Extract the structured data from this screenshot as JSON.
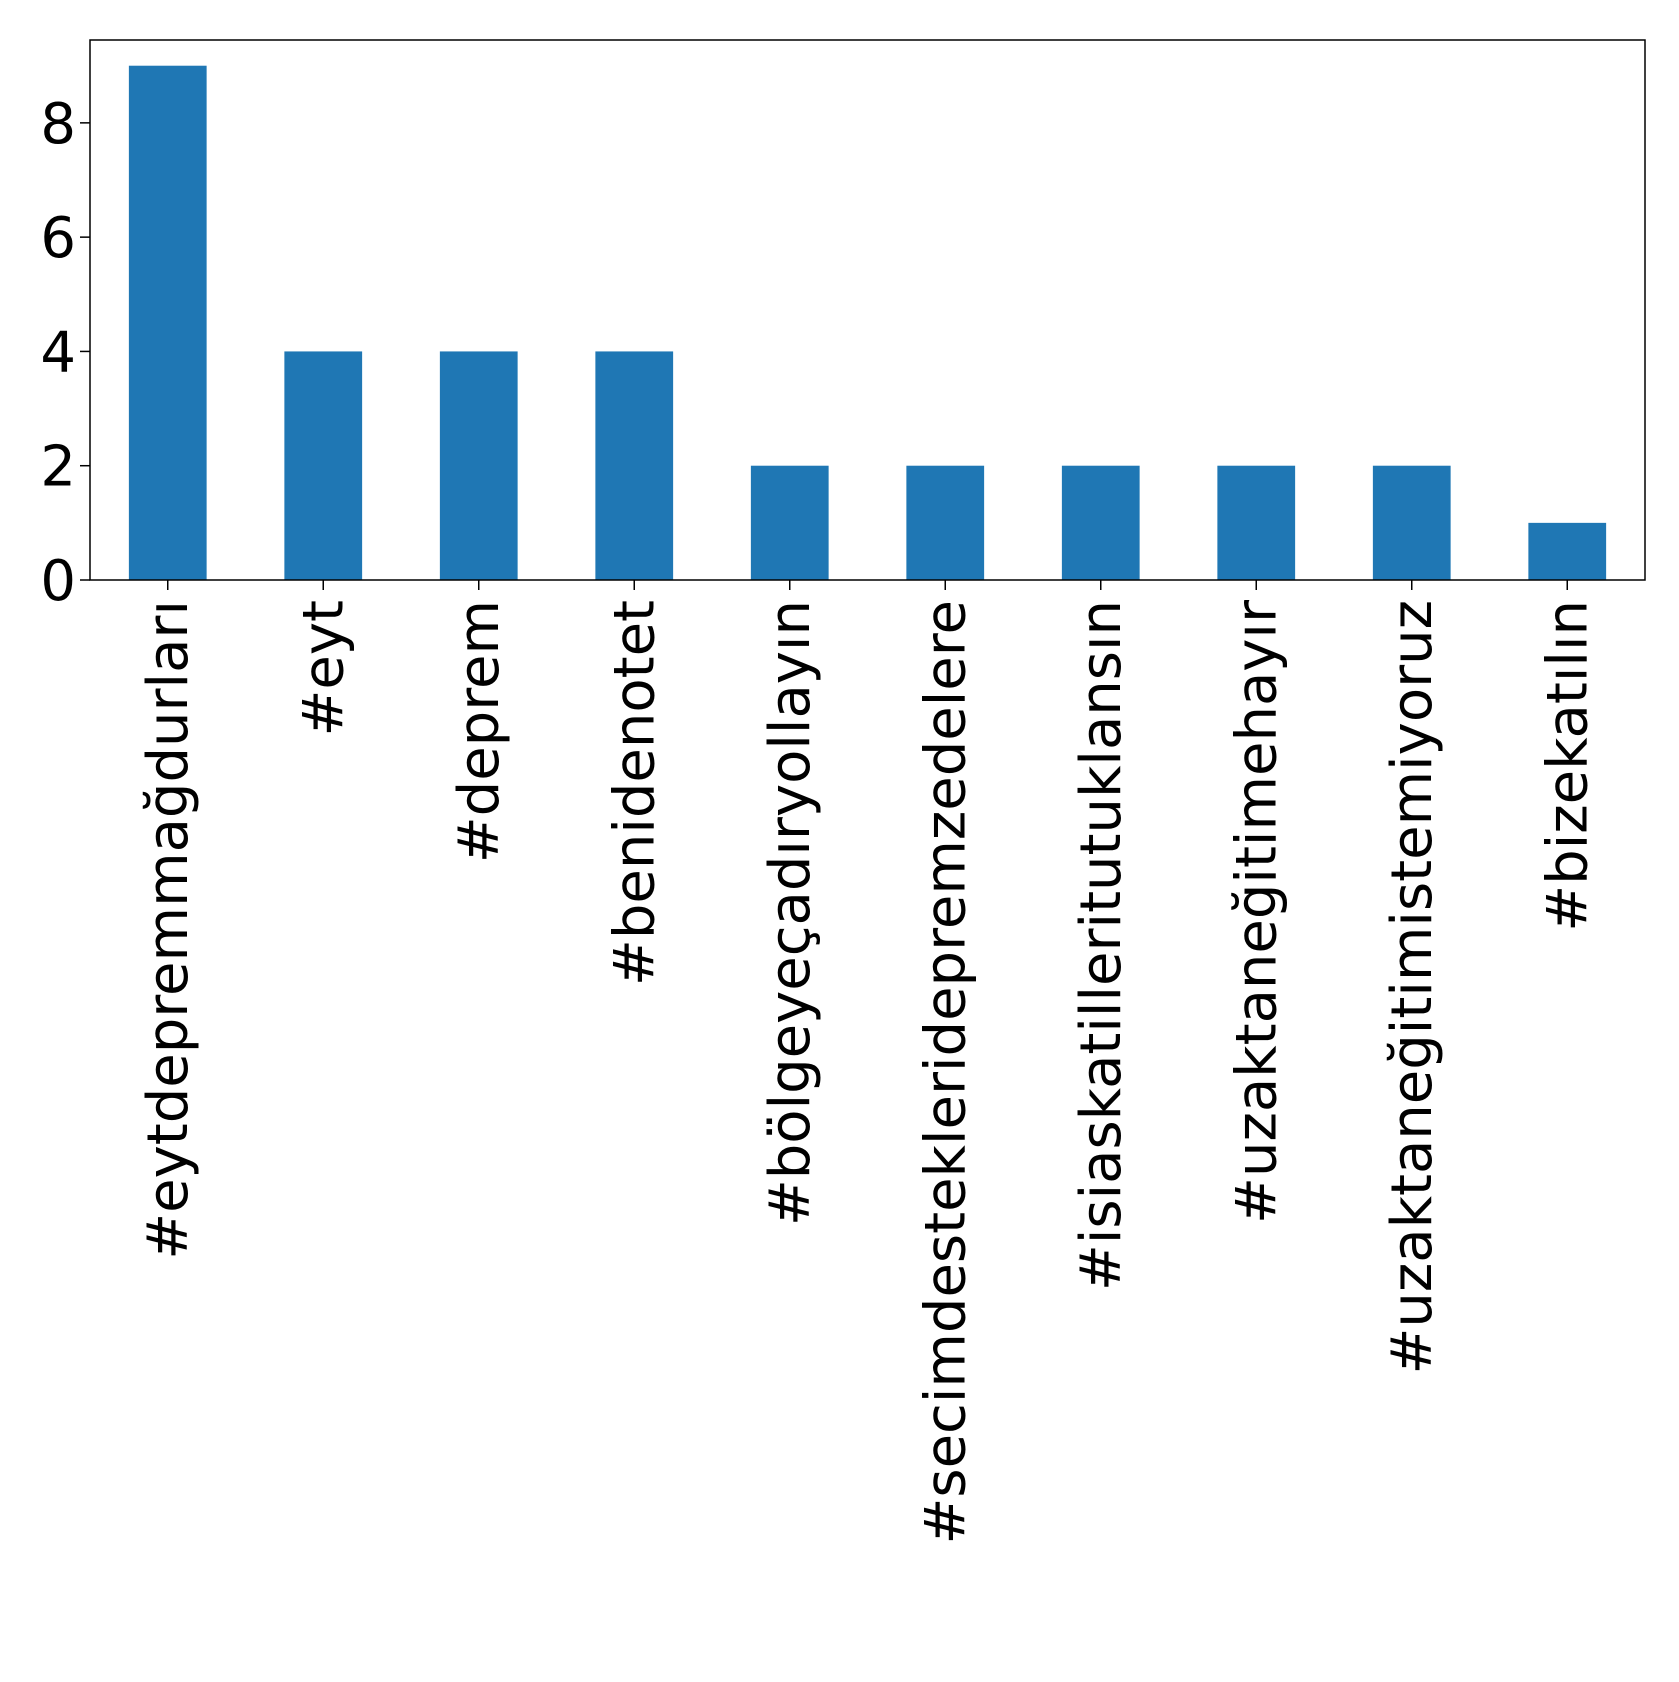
{
  "chart_data": {
    "type": "bar",
    "categories": [
      "#eytdepremmağdurları",
      "#eyt",
      "#deprem",
      "#benidenotet",
      "#bölgeyeçadıryollayın",
      "#secimdesteklerideprem​zedelere",
      "#isiaskatilleritutuklansın",
      "#uzaktaneğitimehayır",
      "#uzaktaneğitimistemiyoruz",
      "#bizekatılın"
    ],
    "values": [
      9,
      4,
      4,
      4,
      2,
      2,
      2,
      2,
      2,
      1
    ],
    "title": "",
    "xlabel": "",
    "ylabel": "",
    "ylim": [
      0,
      9.45
    ],
    "yticks": [
      0,
      2,
      4,
      6,
      8
    ],
    "grid": false,
    "bar_color": "#1f77b4",
    "axis_color": "#000000"
  }
}
